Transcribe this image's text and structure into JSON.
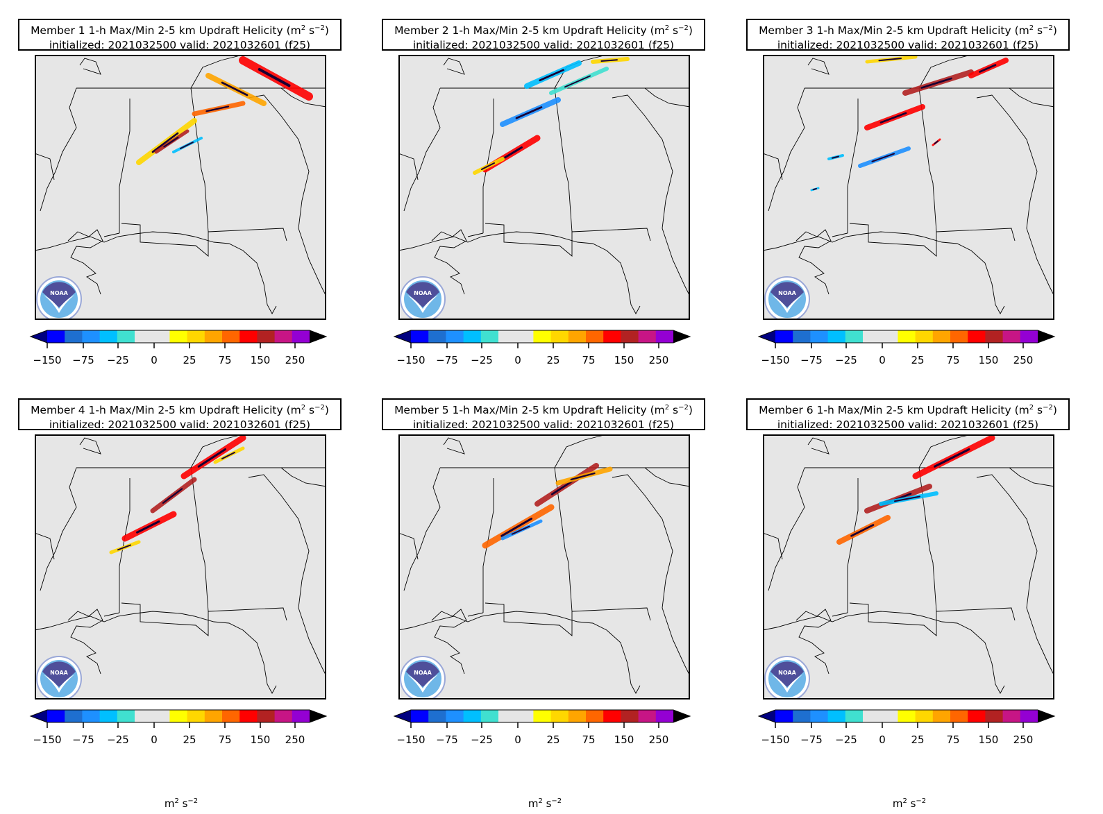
{
  "figure": {
    "panels": [
      {
        "title_line1": "Member 1 1-h Max/Min 2-5 km Updraft Helicity (m",
        "title_unit": "2",
        "title_s": " s",
        "title_exp": "−2",
        "title_close": ")",
        "title_line2": "initialized: 2021032500 valid: 2021032601 (f25)",
        "logo": "noaa-logo"
      },
      {
        "title_line1": "Member 2 1-h Max/Min 2-5 km Updraft Helicity (m",
        "title_unit": "2",
        "title_s": " s",
        "title_exp": "−2",
        "title_close": ")",
        "title_line2": "initialized: 2021032500 valid: 2021032601 (f25)",
        "logo": "noaa-logo"
      },
      {
        "title_line1": "Member 3 1-h Max/Min 2-5 km Updraft Helicity (m",
        "title_unit": "2",
        "title_s": " s",
        "title_exp": "−2",
        "title_close": ")",
        "title_line2": "initialized: 2021032500 valid: 2021032601 (f25)",
        "logo": "noaa-logo"
      },
      {
        "title_line1": "Member 4 1-h Max/Min 2-5 km Updraft Helicity (m",
        "title_unit": "2",
        "title_s": " s",
        "title_exp": "−2",
        "title_close": ")",
        "title_line2": "initialized: 2021032500 valid: 2021032601 (f25)",
        "logo": "noaa-logo"
      },
      {
        "title_line1": "Member 5 1-h Max/Min 2-5 km Updraft Helicity (m",
        "title_unit": "2",
        "title_s": " s",
        "title_exp": "−2",
        "title_close": ")",
        "title_line2": "initialized: 2021032500 valid: 2021032601 (f25)",
        "logo": "noaa-logo"
      },
      {
        "title_line1": "Member 6 1-h Max/Min 2-5 km Updraft Helicity (m",
        "title_unit": "2",
        "title_s": " s",
        "title_exp": "−2",
        "title_close": ")",
        "title_line2": "initialized: 2021032500 valid: 2021032601 (f25)",
        "logo": "noaa-logo"
      }
    ],
    "logo_text": "NOAA",
    "colorbar": {
      "colors": [
        "#0000ff",
        "#1e6fd0",
        "#1e90ff",
        "#00bfff",
        "#40e0d0",
        "#e6e6e6",
        "#e6e6e6",
        "#ffff00",
        "#ffd700",
        "#ffa500",
        "#ff6600",
        "#ff0000",
        "#b22222",
        "#c71585",
        "#9400d3"
      ],
      "under_color": "#000080",
      "over_color": "#000000",
      "tick_labels": [
        "−150",
        "−75",
        "−25",
        "0",
        "25",
        "75",
        "150",
        "250"
      ],
      "unit_base": "m",
      "unit_exp1": "2",
      "unit_mid": " s",
      "unit_exp2": "−2"
    }
  }
}
